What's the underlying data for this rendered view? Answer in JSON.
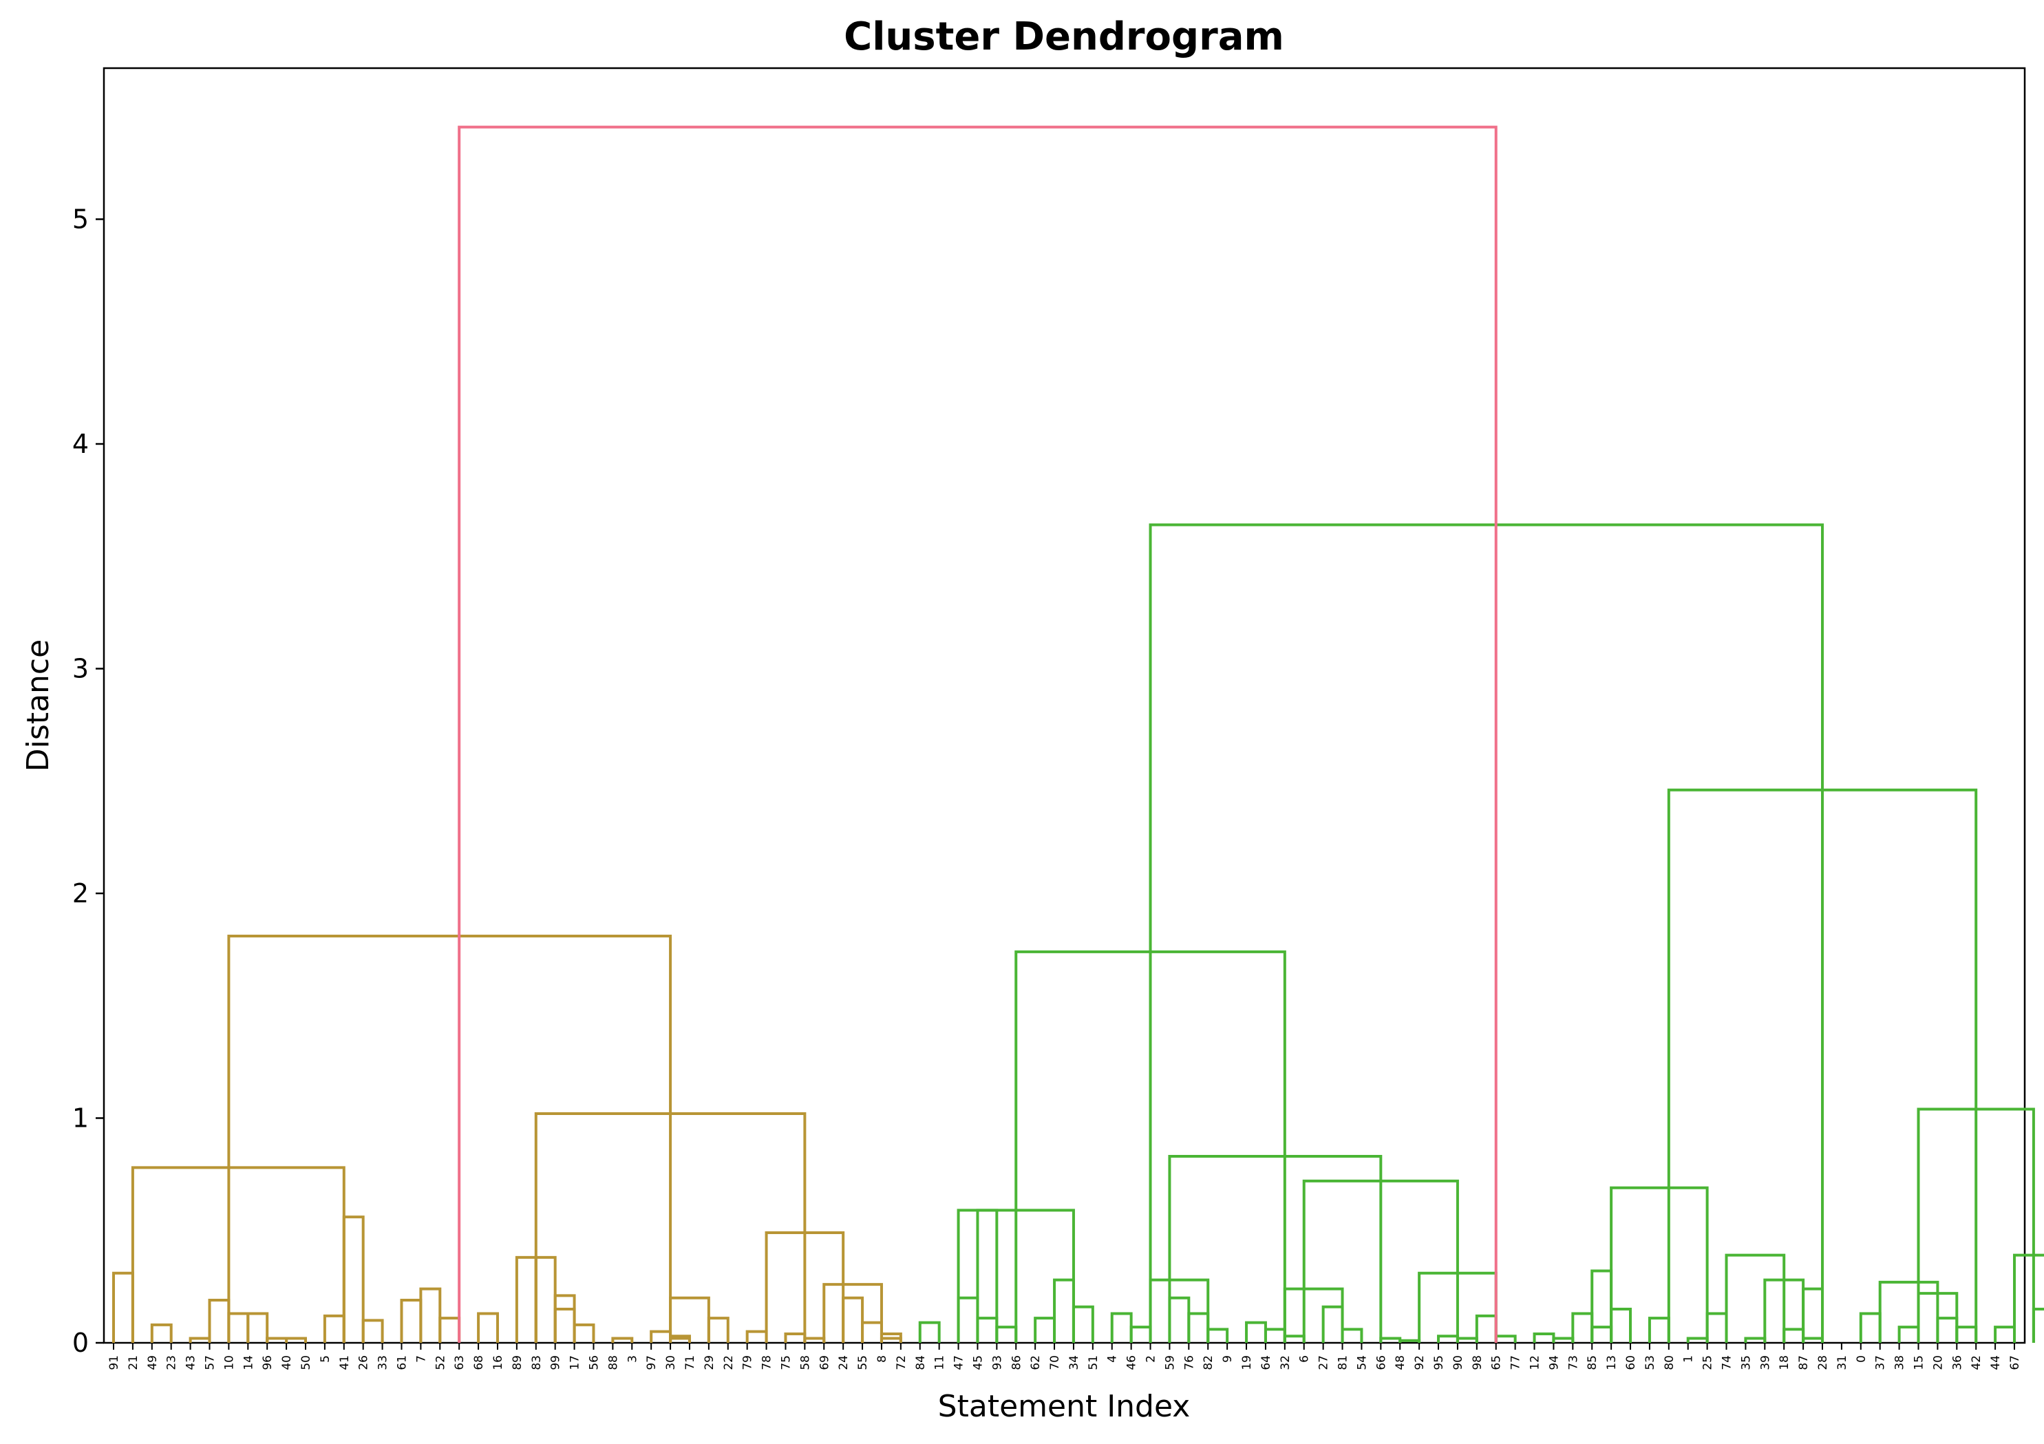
{
  "chart_data": {
    "type": "dendrogram",
    "title": "Cluster Dendrogram",
    "xlabel": "Statement Index",
    "ylabel": "Distance",
    "ylim": [
      0,
      5.67
    ],
    "yticks": [
      "0",
      "1",
      "2",
      "3",
      "4",
      "5"
    ],
    "grid": false,
    "colors": {
      "root": "#f0708a",
      "cluster_a": "#b89535",
      "cluster_b": "#4ab535"
    },
    "leaves": [
      "91",
      "21",
      "49",
      "23",
      "43",
      "57",
      "10",
      "14",
      "96",
      "40",
      "50",
      "5",
      "41",
      "26",
      "33",
      "61",
      "7",
      "52",
      "63",
      "68",
      "16",
      "89",
      "83",
      "99",
      "17",
      "56",
      "88",
      "3",
      "97",
      "30",
      "71",
      "29",
      "22",
      "79",
      "78",
      "75",
      "58",
      "69",
      "24",
      "55",
      "8",
      "72",
      "84",
      "11",
      "47",
      "45",
      "93",
      "86",
      "62",
      "70",
      "34",
      "51",
      "4",
      "46",
      "2",
      "59",
      "76",
      "82",
      "9",
      "19",
      "64",
      "32",
      "6",
      "27",
      "81",
      "54",
      "66",
      "48",
      "92",
      "95",
      "90",
      "98",
      "65",
      "77",
      "12",
      "94",
      "73",
      "85",
      "13",
      "60",
      "53",
      "80",
      "1",
      "25",
      "74",
      "35",
      "39",
      "18",
      "87",
      "28",
      "31",
      "0",
      "37",
      "38",
      "15",
      "20",
      "36",
      "42",
      "44",
      "67"
    ],
    "merges": [
      [
        0,
        1,
        0.31,
        "a"
      ],
      [
        2,
        3,
        0.08,
        "a"
      ],
      [
        4,
        5,
        0.02,
        "a"
      ],
      [
        6,
        7,
        0.13,
        "a"
      ],
      [
        8,
        9,
        0.02,
        "a"
      ],
      [
        8,
        10,
        0.02,
        "a"
      ],
      [
        7,
        8,
        0.13,
        "a"
      ],
      [
        5,
        6,
        0.19,
        "a"
      ],
      [
        11,
        12,
        0.12,
        "a"
      ],
      [
        13,
        14,
        0.1,
        "a"
      ],
      [
        15,
        16,
        0.19,
        "a"
      ],
      [
        17,
        18,
        0.11,
        "a"
      ],
      [
        16,
        17,
        0.24,
        "a"
      ],
      [
        12,
        13,
        0.56,
        "a"
      ],
      [
        1,
        12,
        0.78,
        "a"
      ],
      [
        19,
        20,
        0.13,
        "a"
      ],
      [
        21,
        22,
        0.38,
        "a"
      ],
      [
        23,
        24,
        0.15,
        "a"
      ],
      [
        24,
        25,
        0.08,
        "a"
      ],
      [
        23,
        24,
        0.21,
        "a"
      ],
      [
        22,
        23,
        0.38,
        "a"
      ],
      [
        26,
        27,
        0.02,
        "a"
      ],
      [
        28,
        29,
        0.05,
        "a"
      ],
      [
        29,
        30,
        0.03,
        "a"
      ],
      [
        29,
        30,
        0.02,
        "a"
      ],
      [
        31,
        32,
        0.11,
        "a"
      ],
      [
        29,
        31,
        0.2,
        "a"
      ],
      [
        33,
        34,
        0.05,
        "a"
      ],
      [
        35,
        36,
        0.04,
        "a"
      ],
      [
        36,
        37,
        0.02,
        "a"
      ],
      [
        38,
        39,
        0.2,
        "a"
      ],
      [
        39,
        40,
        0.09,
        "a"
      ],
      [
        40,
        41,
        0.04,
        "a"
      ],
      [
        40,
        41,
        0.02,
        "a"
      ],
      [
        37,
        40,
        0.26,
        "a"
      ],
      [
        34,
        38,
        0.49,
        "a"
      ],
      [
        22,
        36,
        1.02,
        "a"
      ],
      [
        6,
        29,
        1.81,
        "a"
      ],
      [
        42,
        43,
        0.09,
        "b"
      ],
      [
        44,
        45,
        0.2,
        "b"
      ],
      [
        45,
        46,
        0.11,
        "b"
      ],
      [
        46,
        47,
        0.07,
        "b"
      ],
      [
        44,
        46,
        0.59,
        "b"
      ],
      [
        48,
        49,
        0.11,
        "b"
      ],
      [
        50,
        51,
        0.16,
        "b"
      ],
      [
        49,
        50,
        0.28,
        "b"
      ],
      [
        45,
        50,
        0.59,
        "b"
      ],
      [
        52,
        53,
        0.13,
        "b"
      ],
      [
        53,
        54,
        0.07,
        "b"
      ],
      [
        55,
        56,
        0.2,
        "b"
      ],
      [
        56,
        57,
        0.13,
        "b"
      ],
      [
        57,
        58,
        0.06,
        "b"
      ],
      [
        54,
        57,
        0.28,
        "b"
      ],
      [
        59,
        60,
        0.09,
        "b"
      ],
      [
        60,
        61,
        0.06,
        "b"
      ],
      [
        61,
        62,
        0.03,
        "b"
      ],
      [
        63,
        64,
        0.16,
        "b"
      ],
      [
        64,
        65,
        0.06,
        "b"
      ],
      [
        61,
        64,
        0.24,
        "b"
      ],
      [
        66,
        67,
        0.02,
        "b"
      ],
      [
        67,
        68,
        0.01,
        "b"
      ],
      [
        69,
        70,
        0.03,
        "b"
      ],
      [
        70,
        71,
        0.02,
        "b"
      ],
      [
        71,
        72,
        0.12,
        "b"
      ],
      [
        72,
        73,
        0.03,
        "b"
      ],
      [
        68,
        72,
        0.31,
        "b"
      ],
      [
        62,
        70,
        0.72,
        "b"
      ],
      [
        55,
        66,
        0.83,
        "b"
      ],
      [
        47,
        61,
        1.74,
        "b"
      ],
      [
        74,
        75,
        0.04,
        "b"
      ],
      [
        75,
        76,
        0.02,
        "b"
      ],
      [
        76,
        77,
        0.13,
        "b"
      ],
      [
        77,
        78,
        0.07,
        "b"
      ],
      [
        78,
        79,
        0.15,
        "b"
      ],
      [
        77,
        78,
        0.32,
        "b"
      ],
      [
        80,
        81,
        0.11,
        "b"
      ],
      [
        82,
        83,
        0.02,
        "b"
      ],
      [
        83,
        84,
        0.13,
        "b"
      ],
      [
        85,
        86,
        0.02,
        "b"
      ],
      [
        87,
        88,
        0.06,
        "b"
      ],
      [
        88,
        89,
        0.02,
        "b"
      ],
      [
        88,
        89,
        0.24,
        "b"
      ],
      [
        86,
        88,
        0.28,
        "b"
      ],
      [
        84,
        87,
        0.39,
        "b"
      ],
      [
        78,
        83,
        0.69,
        "b"
      ],
      [
        91,
        92,
        0.13,
        "b"
      ],
      [
        93,
        94,
        0.07,
        "b"
      ],
      [
        95,
        96,
        0.11,
        "b"
      ],
      [
        96,
        97,
        0.07,
        "b"
      ],
      [
        94,
        96,
        0.22,
        "b"
      ],
      [
        92,
        95,
        0.27,
        "b"
      ],
      [
        98,
        99,
        0.07,
        "b"
      ],
      [
        100,
        101,
        0.15,
        "b"
      ],
      [
        102,
        103,
        0.15,
        "b"
      ],
      [
        101,
        102,
        0.3,
        "b"
      ],
      [
        99,
        102,
        0.39,
        "b"
      ],
      [
        94,
        100,
        1.04,
        "b"
      ],
      [
        81,
        97,
        2.46,
        "b"
      ],
      [
        54,
        89,
        3.64,
        "b"
      ],
      [
        18,
        72,
        5.41,
        "root"
      ]
    ]
  }
}
